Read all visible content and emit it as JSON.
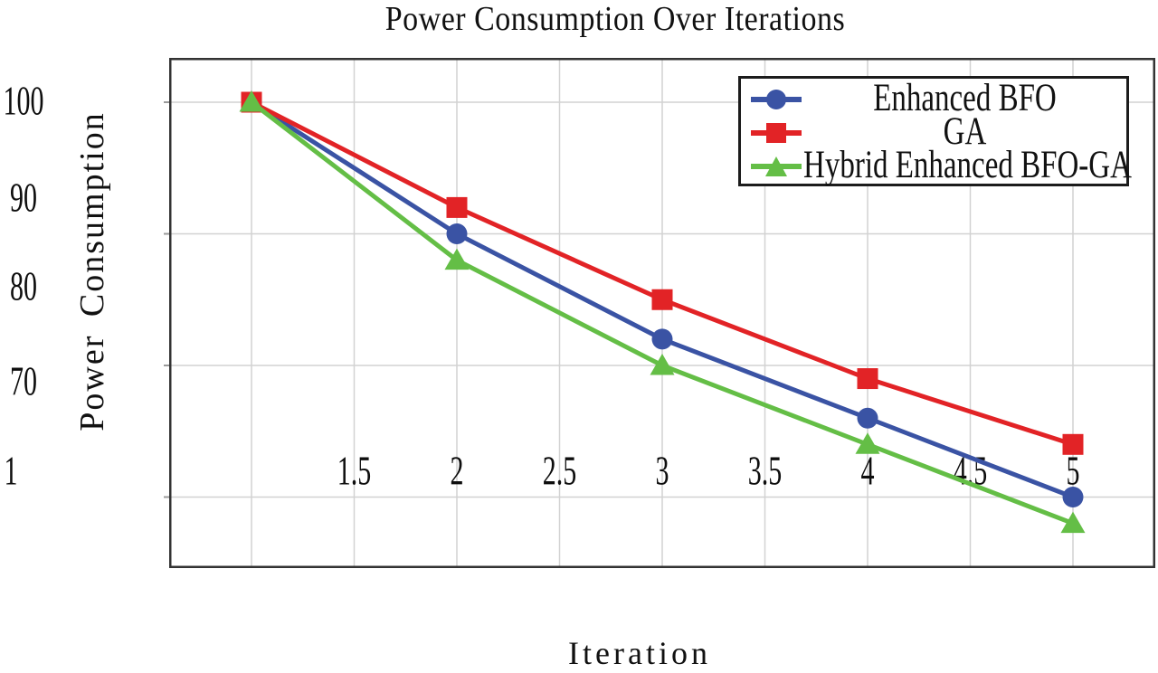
{
  "figure": {
    "title": "Power Consumption Over Iterations",
    "xlabel": "Iteration",
    "ylabel": "Power Consumption"
  },
  "chart_data": {
    "type": "line",
    "title": "Power Consumption Over Iterations",
    "xlabel": "Iteration",
    "ylabel": "Power Consumption",
    "x": [
      1,
      2,
      3,
      4,
      5
    ],
    "series": [
      {
        "name": "Enhanced BFO",
        "color": "#3a53a4",
        "marker": "circle",
        "values": [
          100,
          90,
          82,
          76,
          70
        ]
      },
      {
        "name": "GA",
        "color": "#e22326",
        "marker": "square",
        "values": [
          100,
          92,
          85,
          79,
          74
        ]
      },
      {
        "name": "Hybrid Enhanced BFO-GA",
        "color": "#64be46",
        "marker": "triangle",
        "values": [
          100,
          88,
          80,
          74,
          68
        ]
      }
    ],
    "x_tick_labels": [
      "1",
      "1.5",
      "2",
      "2.5",
      "3",
      "3.5",
      "4",
      "4.5",
      "5"
    ],
    "y_tick_labels": [
      "100",
      "90",
      "80",
      "70"
    ],
    "y_gridline_values": [
      100,
      90,
      80,
      70
    ],
    "x_gridline_step": 0.5,
    "xlim": [
      0.6,
      5.4
    ],
    "ylim": [
      64.7,
      103.4
    ],
    "grid": true,
    "legend": {
      "position": "top-right",
      "entries": [
        "Enhanced BFO",
        "GA",
        "Hybrid Enhanced BFO-GA"
      ]
    },
    "style": {
      "grid_color": "#d2d2d2",
      "frame_color": "#333333",
      "tick_color": "#9a9a9a",
      "text_color": "#111111",
      "background": "#ffffff"
    }
  }
}
